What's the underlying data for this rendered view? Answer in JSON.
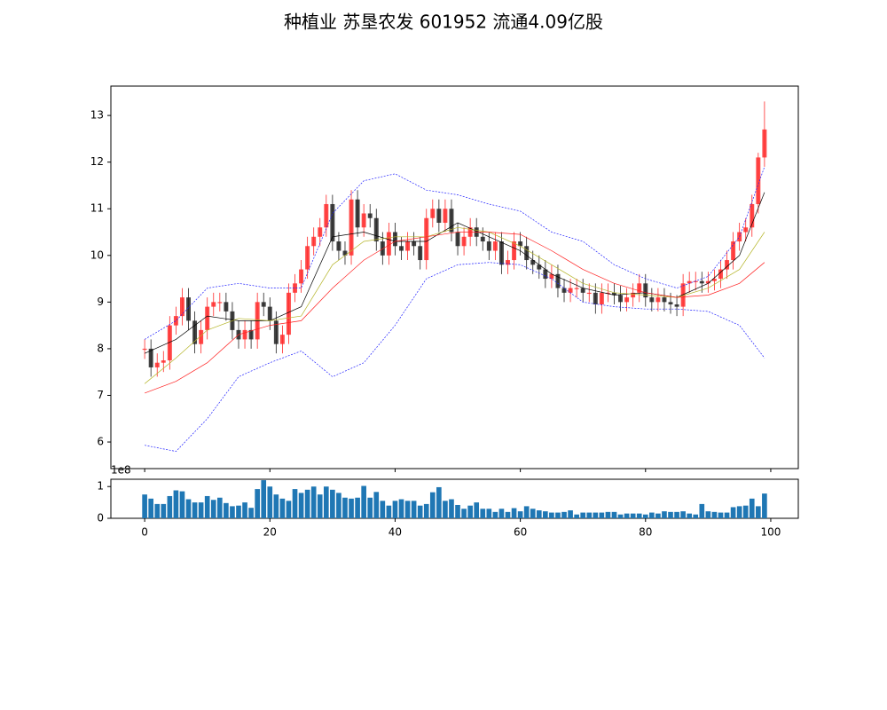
{
  "chart_data": [
    {
      "type": "candlestick",
      "title": "种植业 苏垦农发 601952 流通4.09亿股",
      "up_color": "#ff2a2a",
      "down_color": "#222222",
      "open": [
        7.98,
        8.0,
        7.6,
        7.7,
        7.75,
        8.5,
        8.7,
        9.1,
        8.6,
        8.1,
        8.4,
        8.9,
        9.0,
        9.0,
        8.8,
        8.4,
        8.2,
        8.4,
        8.2,
        9.0,
        8.9,
        8.6,
        8.1,
        8.3,
        9.2,
        9.4,
        9.7,
        10.2,
        10.4,
        10.6,
        11.1,
        10.3,
        10.1,
        10.0,
        11.2,
        10.6,
        10.9,
        10.8,
        10.3,
        10.0,
        10.5,
        10.2,
        10.1,
        10.3,
        10.2,
        9.9,
        10.8,
        11.0,
        10.7,
        11.0,
        10.5,
        10.2,
        10.4,
        10.6,
        10.4,
        10.3,
        10.1,
        10.3,
        9.8,
        9.9,
        10.3,
        10.2,
        9.9,
        9.8,
        9.7,
        9.5,
        9.6,
        9.3,
        9.2,
        9.3,
        9.3,
        9.2,
        9.2,
        8.95,
        9.2,
        9.2,
        9.15,
        9.0,
        9.1,
        9.2,
        9.4,
        9.1,
        9.0,
        9.1,
        9.0,
        8.95,
        8.9,
        9.4,
        9.45,
        9.45,
        9.4,
        9.45,
        9.5,
        9.7,
        9.9,
        10.3,
        10.5,
        10.6,
        11.1,
        12.1
      ],
      "high": [
        8.2,
        8.2,
        7.9,
        7.95,
        8.7,
        8.9,
        9.3,
        9.3,
        8.8,
        8.6,
        9.1,
        9.2,
        9.2,
        9.2,
        9.0,
        8.6,
        8.6,
        8.6,
        9.2,
        9.2,
        9.1,
        8.8,
        8.5,
        9.4,
        9.6,
        9.9,
        10.4,
        10.6,
        10.8,
        11.3,
        11.3,
        10.5,
        10.3,
        11.4,
        11.4,
        11.1,
        11.1,
        11.0,
        10.5,
        10.7,
        10.7,
        10.4,
        10.5,
        10.5,
        10.4,
        11.0,
        11.2,
        11.2,
        11.2,
        11.2,
        10.7,
        10.6,
        10.8,
        10.8,
        10.6,
        10.5,
        10.5,
        10.5,
        10.1,
        10.5,
        10.5,
        10.4,
        10.1,
        10.0,
        9.9,
        9.8,
        9.8,
        9.5,
        9.5,
        9.5,
        9.5,
        9.4,
        9.4,
        9.4,
        9.4,
        9.4,
        9.35,
        9.3,
        9.4,
        9.6,
        9.6,
        9.3,
        9.3,
        9.3,
        9.2,
        9.15,
        9.6,
        9.65,
        9.65,
        9.65,
        9.65,
        9.7,
        9.9,
        10.1,
        10.5,
        10.7,
        10.8,
        11.3,
        12.2,
        13.3
      ],
      "low": [
        7.78,
        7.4,
        7.4,
        7.5,
        7.55,
        8.3,
        8.5,
        8.4,
        7.9,
        7.9,
        8.2,
        8.7,
        8.8,
        8.6,
        8.2,
        8.0,
        8.0,
        8.0,
        8.0,
        8.7,
        8.4,
        7.9,
        7.9,
        8.1,
        9.0,
        9.2,
        9.5,
        10.0,
        10.2,
        10.4,
        10.1,
        9.9,
        9.8,
        9.8,
        10.4,
        10.4,
        10.6,
        10.1,
        9.8,
        9.8,
        10.0,
        9.9,
        9.9,
        10.0,
        9.7,
        9.7,
        10.6,
        10.5,
        10.5,
        10.3,
        10.0,
        10.0,
        10.2,
        10.2,
        10.1,
        9.9,
        9.9,
        9.6,
        9.6,
        9.7,
        10.0,
        9.7,
        9.6,
        9.5,
        9.3,
        9.3,
        9.1,
        9.0,
        9.0,
        9.1,
        9.0,
        9.0,
        8.75,
        8.75,
        9.0,
        8.95,
        8.8,
        8.8,
        8.9,
        9.0,
        8.9,
        8.8,
        8.8,
        8.8,
        8.75,
        8.7,
        8.7,
        9.2,
        9.25,
        9.2,
        9.2,
        9.25,
        9.3,
        9.5,
        9.7,
        10.1,
        10.3,
        10.4,
        10.9,
        11.9
      ],
      "close": [
        8.0,
        7.6,
        7.7,
        7.75,
        8.5,
        8.7,
        9.1,
        8.6,
        8.1,
        8.4,
        8.9,
        9.0,
        9.0,
        8.8,
        8.4,
        8.2,
        8.4,
        8.2,
        9.0,
        8.9,
        8.6,
        8.1,
        8.3,
        9.2,
        9.4,
        9.7,
        10.2,
        10.4,
        10.6,
        11.1,
        10.3,
        10.1,
        10.0,
        11.2,
        10.6,
        10.9,
        10.8,
        10.3,
        10.0,
        10.5,
        10.2,
        10.1,
        10.3,
        10.2,
        9.9,
        10.8,
        11.0,
        10.7,
        11.0,
        10.5,
        10.2,
        10.4,
        10.6,
        10.4,
        10.3,
        10.1,
        10.3,
        9.8,
        9.9,
        10.3,
        10.2,
        9.9,
        9.8,
        9.7,
        9.5,
        9.6,
        9.3,
        9.2,
        9.3,
        9.3,
        9.2,
        9.2,
        8.95,
        9.2,
        9.2,
        9.15,
        9.0,
        9.1,
        9.2,
        9.4,
        9.1,
        9.0,
        9.1,
        9.0,
        8.95,
        8.9,
        9.4,
        9.45,
        9.45,
        9.4,
        9.45,
        9.5,
        9.7,
        9.9,
        10.3,
        10.5,
        10.6,
        11.1,
        12.1,
        12.7
      ],
      "lines": [
        {
          "color": "#000000",
          "style": "solid",
          "x": [
            0,
            5,
            10,
            15,
            20,
            25,
            30,
            35,
            40,
            45,
            50,
            55,
            60,
            65,
            70,
            75,
            80,
            85,
            90,
            95,
            99
          ],
          "values": [
            7.9,
            8.2,
            8.7,
            8.6,
            8.6,
            8.9,
            10.4,
            10.5,
            10.3,
            10.3,
            10.7,
            10.4,
            10.1,
            9.6,
            9.3,
            9.15,
            9.2,
            9.1,
            9.4,
            10.0,
            11.35
          ]
        },
        {
          "color": "#b5b52a",
          "style": "solid",
          "x": [
            0,
            5,
            10,
            15,
            20,
            25,
            30,
            35,
            40,
            45,
            50,
            55,
            60,
            65,
            70,
            75,
            80,
            85,
            90,
            95,
            99
          ],
          "values": [
            7.25,
            7.8,
            8.4,
            8.65,
            8.6,
            8.7,
            9.8,
            10.3,
            10.4,
            10.4,
            10.6,
            10.5,
            10.2,
            9.8,
            9.4,
            9.2,
            9.15,
            9.1,
            9.3,
            9.7,
            10.5
          ]
        },
        {
          "color": "#ff2020",
          "style": "solid",
          "x": [
            0,
            5,
            10,
            15,
            20,
            25,
            30,
            35,
            40,
            45,
            50,
            55,
            60,
            65,
            70,
            75,
            80,
            85,
            90,
            95,
            99
          ],
          "values": [
            7.05,
            7.3,
            7.7,
            8.3,
            8.5,
            8.6,
            9.3,
            9.9,
            10.3,
            10.4,
            10.5,
            10.5,
            10.45,
            10.1,
            9.7,
            9.4,
            9.2,
            9.1,
            9.15,
            9.4,
            9.85
          ]
        },
        {
          "color": "#2020ff",
          "style": "dashed",
          "x": [
            0,
            5,
            10,
            15,
            20,
            25,
            30,
            35,
            40,
            45,
            50,
            55,
            60,
            65,
            70,
            75,
            80,
            85,
            90,
            95,
            99
          ],
          "values": [
            8.2,
            8.6,
            9.3,
            9.4,
            9.3,
            9.3,
            10.9,
            11.6,
            11.75,
            11.4,
            11.3,
            11.1,
            10.95,
            10.5,
            10.3,
            9.8,
            9.5,
            9.3,
            9.55,
            10.4,
            11.9
          ]
        },
        {
          "color": "#2020ff",
          "style": "dashed",
          "x": [
            0,
            5,
            10,
            15,
            20,
            25,
            30,
            35,
            40,
            45,
            50,
            55,
            60,
            65,
            70,
            75,
            80,
            85,
            90,
            95,
            99
          ],
          "values": [
            5.93,
            5.8,
            6.5,
            7.4,
            7.7,
            7.95,
            7.4,
            7.7,
            8.5,
            9.5,
            9.8,
            9.85,
            9.8,
            9.5,
            9.0,
            8.9,
            8.85,
            8.85,
            8.8,
            8.5,
            7.8
          ]
        }
      ],
      "xlim": [
        -5.4,
        104.4
      ],
      "ylim": [
        5.43,
        13.63
      ],
      "yticks": [
        6,
        7,
        8,
        9,
        10,
        11,
        12,
        13
      ]
    },
    {
      "type": "bar",
      "color": "#1f77b4",
      "offset_label": "1e8",
      "values": [
        0.75,
        0.62,
        0.45,
        0.45,
        0.7,
        0.88,
        0.85,
        0.6,
        0.5,
        0.5,
        0.7,
        0.58,
        0.65,
        0.48,
        0.38,
        0.4,
        0.5,
        0.33,
        0.92,
        1.2,
        1.0,
        0.75,
        0.62,
        0.55,
        0.92,
        0.8,
        0.9,
        1.0,
        0.75,
        1.0,
        0.9,
        0.8,
        0.65,
        0.62,
        0.65,
        1.02,
        0.65,
        0.83,
        0.55,
        0.4,
        0.55,
        0.6,
        0.55,
        0.55,
        0.4,
        0.45,
        0.82,
        0.98,
        0.55,
        0.6,
        0.42,
        0.3,
        0.4,
        0.5,
        0.3,
        0.3,
        0.2,
        0.3,
        0.2,
        0.32,
        0.22,
        0.38,
        0.3,
        0.25,
        0.22,
        0.18,
        0.18,
        0.2,
        0.25,
        0.12,
        0.18,
        0.18,
        0.18,
        0.18,
        0.2,
        0.2,
        0.12,
        0.15,
        0.15,
        0.15,
        0.12,
        0.18,
        0.15,
        0.22,
        0.2,
        0.2,
        0.22,
        0.15,
        0.12,
        0.45,
        0.22,
        0.2,
        0.18,
        0.18,
        0.35,
        0.38,
        0.4,
        0.62,
        0.38,
        0.78
      ],
      "xlim": [
        -5.4,
        104.4
      ],
      "ylim": [
        0,
        1.23
      ],
      "yticks": [
        0,
        1
      ],
      "xticks": [
        0,
        20,
        40,
        60,
        80,
        100
      ]
    }
  ]
}
